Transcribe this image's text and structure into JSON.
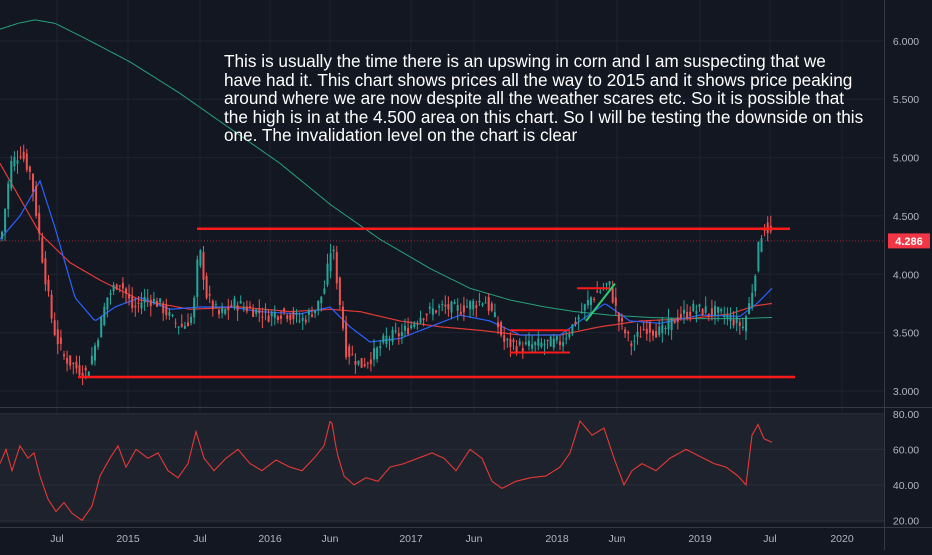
{
  "chart_data": [
    {
      "type": "candlestick",
      "x_labels": [
        "Jul",
        "2015",
        "Jul",
        "2016",
        "Jun",
        "2017",
        "Jun",
        "2018",
        "Jun",
        "2019",
        "Jul",
        "2020"
      ],
      "y_ticks": [
        "6.000",
        "5.500",
        "5.000",
        "4.500",
        "4.000",
        "3.500",
        "3.000"
      ],
      "ylim": [
        2.88,
        6.35
      ],
      "last_price_label": "4.286",
      "last_price": 4.286,
      "annotation": "This is usually the time there is an upswing in corn and I am suspecting that we have had it. This chart shows prices all the way to 2015 and it shows price peaking around where we are now despite all the weather scares etc. So it is possible that the high is in at the 4.500 area on this chart. So I will be testing the downside on this one. The invalidation level on the chart is clear",
      "horizontal_levels": [
        4.39,
        3.12
      ],
      "price_anchors": [
        [
          0,
          4.3
        ],
        [
          10,
          4.95
        ],
        [
          20,
          5.05
        ],
        [
          30,
          4.85
        ],
        [
          42,
          4.1
        ],
        [
          52,
          3.55
        ],
        [
          62,
          3.3
        ],
        [
          75,
          3.2
        ],
        [
          86,
          3.15
        ],
        [
          96,
          3.45
        ],
        [
          106,
          3.8
        ],
        [
          118,
          3.95
        ],
        [
          124,
          3.85
        ],
        [
          132,
          3.7
        ],
        [
          145,
          3.8
        ],
        [
          158,
          3.75
        ],
        [
          172,
          3.6
        ],
        [
          182,
          3.55
        ],
        [
          192,
          3.65
        ],
        [
          198,
          4.25
        ],
        [
          206,
          3.8
        ],
        [
          218,
          3.65
        ],
        [
          234,
          3.75
        ],
        [
          250,
          3.7
        ],
        [
          268,
          3.65
        ],
        [
          284,
          3.68
        ],
        [
          300,
          3.6
        ],
        [
          316,
          3.72
        ],
        [
          324,
          3.9
        ],
        [
          331,
          4.28
        ],
        [
          339,
          3.75
        ],
        [
          345,
          3.35
        ],
        [
          360,
          3.22
        ],
        [
          372,
          3.3
        ],
        [
          385,
          3.45
        ],
        [
          402,
          3.5
        ],
        [
          420,
          3.65
        ],
        [
          440,
          3.72
        ],
        [
          458,
          3.7
        ],
        [
          472,
          3.75
        ],
        [
          484,
          3.78
        ],
        [
          495,
          3.6
        ],
        [
          503,
          3.42
        ],
        [
          520,
          3.38
        ],
        [
          540,
          3.4
        ],
        [
          560,
          3.42
        ],
        [
          575,
          3.6
        ],
        [
          590,
          3.8
        ],
        [
          608,
          3.92
        ],
        [
          618,
          3.6
        ],
        [
          630,
          3.4
        ],
        [
          645,
          3.55
        ],
        [
          660,
          3.5
        ],
        [
          675,
          3.62
        ],
        [
          692,
          3.7
        ],
        [
          712,
          3.68
        ],
        [
          730,
          3.62
        ],
        [
          742,
          3.55
        ],
        [
          750,
          3.8
        ],
        [
          757,
          4.2
        ],
        [
          762,
          4.42
        ],
        [
          768,
          4.38
        ],
        [
          772,
          4.3
        ]
      ],
      "sma_slow_anchors": [
        [
          0,
          6.1
        ],
        [
          18,
          6.15
        ],
        [
          35,
          6.18
        ],
        [
          55,
          6.15
        ],
        [
          90,
          6.0
        ],
        [
          130,
          5.82
        ],
        [
          180,
          5.55
        ],
        [
          230,
          5.25
        ],
        [
          280,
          4.95
        ],
        [
          330,
          4.6
        ],
        [
          380,
          4.3
        ],
        [
          430,
          4.05
        ],
        [
          470,
          3.88
        ],
        [
          510,
          3.78
        ],
        [
          545,
          3.72
        ],
        [
          575,
          3.68
        ],
        [
          610,
          3.65
        ],
        [
          650,
          3.63
        ],
        [
          690,
          3.62
        ],
        [
          740,
          3.62
        ],
        [
          772,
          3.63
        ]
      ],
      "sma_mid_anchors": [
        [
          0,
          4.95
        ],
        [
          40,
          4.35
        ],
        [
          70,
          4.1
        ],
        [
          100,
          3.95
        ],
        [
          140,
          3.78
        ],
        [
          190,
          3.7
        ],
        [
          240,
          3.72
        ],
        [
          290,
          3.68
        ],
        [
          330,
          3.7
        ],
        [
          360,
          3.68
        ],
        [
          400,
          3.6
        ],
        [
          440,
          3.55
        ],
        [
          480,
          3.52
        ],
        [
          520,
          3.48
        ],
        [
          560,
          3.48
        ],
        [
          600,
          3.55
        ],
        [
          640,
          3.6
        ],
        [
          690,
          3.62
        ],
        [
          730,
          3.66
        ],
        [
          755,
          3.73
        ],
        [
          772,
          3.75
        ]
      ],
      "sma_fast_anchors": [
        [
          0,
          4.3
        ],
        [
          20,
          4.5
        ],
        [
          40,
          4.8
        ],
        [
          55,
          4.4
        ],
        [
          75,
          3.8
        ],
        [
          95,
          3.6
        ],
        [
          115,
          3.72
        ],
        [
          140,
          3.8
        ],
        [
          170,
          3.7
        ],
        [
          200,
          3.72
        ],
        [
          230,
          3.72
        ],
        [
          260,
          3.68
        ],
        [
          300,
          3.66
        ],
        [
          330,
          3.72
        ],
        [
          350,
          3.55
        ],
        [
          370,
          3.42
        ],
        [
          400,
          3.45
        ],
        [
          430,
          3.55
        ],
        [
          460,
          3.65
        ],
        [
          490,
          3.6
        ],
        [
          520,
          3.48
        ],
        [
          560,
          3.48
        ],
        [
          580,
          3.6
        ],
        [
          605,
          3.75
        ],
        [
          630,
          3.6
        ],
        [
          660,
          3.58
        ],
        [
          700,
          3.65
        ],
        [
          740,
          3.64
        ],
        [
          757,
          3.75
        ],
        [
          772,
          3.88
        ]
      ],
      "small_trendlines": [
        [
          [
            510,
            3.52
          ],
          [
            570,
            3.52
          ]
        ],
        [
          [
            510,
            3.33
          ],
          [
            570,
            3.33
          ]
        ],
        [
          [
            577,
            3.88
          ],
          [
            610,
            3.88
          ]
        ],
        [
          [
            586,
            3.6
          ],
          [
            615,
            3.92
          ]
        ]
      ]
    },
    {
      "type": "line",
      "name": "oscillator",
      "y_ticks": [
        "80.00",
        "60.00",
        "40.00",
        "20.00"
      ],
      "ylim": [
        18.5,
        80.5
      ],
      "value_anchors": [
        [
          0,
          52
        ],
        [
          6,
          60
        ],
        [
          12,
          48
        ],
        [
          20,
          62
        ],
        [
          28,
          55
        ],
        [
          34,
          58
        ],
        [
          40,
          45
        ],
        [
          48,
          32
        ],
        [
          56,
          25
        ],
        [
          64,
          30
        ],
        [
          72,
          24
        ],
        [
          82,
          20
        ],
        [
          92,
          28
        ],
        [
          100,
          45
        ],
        [
          110,
          55
        ],
        [
          118,
          62
        ],
        [
          126,
          50
        ],
        [
          136,
          60
        ],
        [
          148,
          55
        ],
        [
          158,
          58
        ],
        [
          168,
          48
        ],
        [
          178,
          44
        ],
        [
          188,
          52
        ],
        [
          196,
          70
        ],
        [
          204,
          55
        ],
        [
          214,
          48
        ],
        [
          226,
          55
        ],
        [
          238,
          60
        ],
        [
          250,
          52
        ],
        [
          262,
          48
        ],
        [
          276,
          54
        ],
        [
          290,
          50
        ],
        [
          302,
          48
        ],
        [
          314,
          55
        ],
        [
          324,
          62
        ],
        [
          331,
          78
        ],
        [
          337,
          58
        ],
        [
          344,
          45
        ],
        [
          354,
          40
        ],
        [
          366,
          44
        ],
        [
          378,
          42
        ],
        [
          390,
          50
        ],
        [
          404,
          52
        ],
        [
          418,
          55
        ],
        [
          432,
          58
        ],
        [
          444,
          55
        ],
        [
          456,
          48
        ],
        [
          470,
          60
        ],
        [
          482,
          55
        ],
        [
          492,
          42
        ],
        [
          502,
          38
        ],
        [
          516,
          42
        ],
        [
          530,
          44
        ],
        [
          546,
          45
        ],
        [
          560,
          50
        ],
        [
          570,
          58
        ],
        [
          580,
          76
        ],
        [
          592,
          68
        ],
        [
          604,
          72
        ],
        [
          614,
          55
        ],
        [
          624,
          40
        ],
        [
          632,
          48
        ],
        [
          642,
          52
        ],
        [
          656,
          48
        ],
        [
          670,
          55
        ],
        [
          686,
          60
        ],
        [
          700,
          56
        ],
        [
          714,
          52
        ],
        [
          726,
          50
        ],
        [
          738,
          45
        ],
        [
          746,
          40
        ],
        [
          752,
          68
        ],
        [
          758,
          74
        ],
        [
          764,
          66
        ],
        [
          772,
          64
        ]
      ]
    }
  ]
}
